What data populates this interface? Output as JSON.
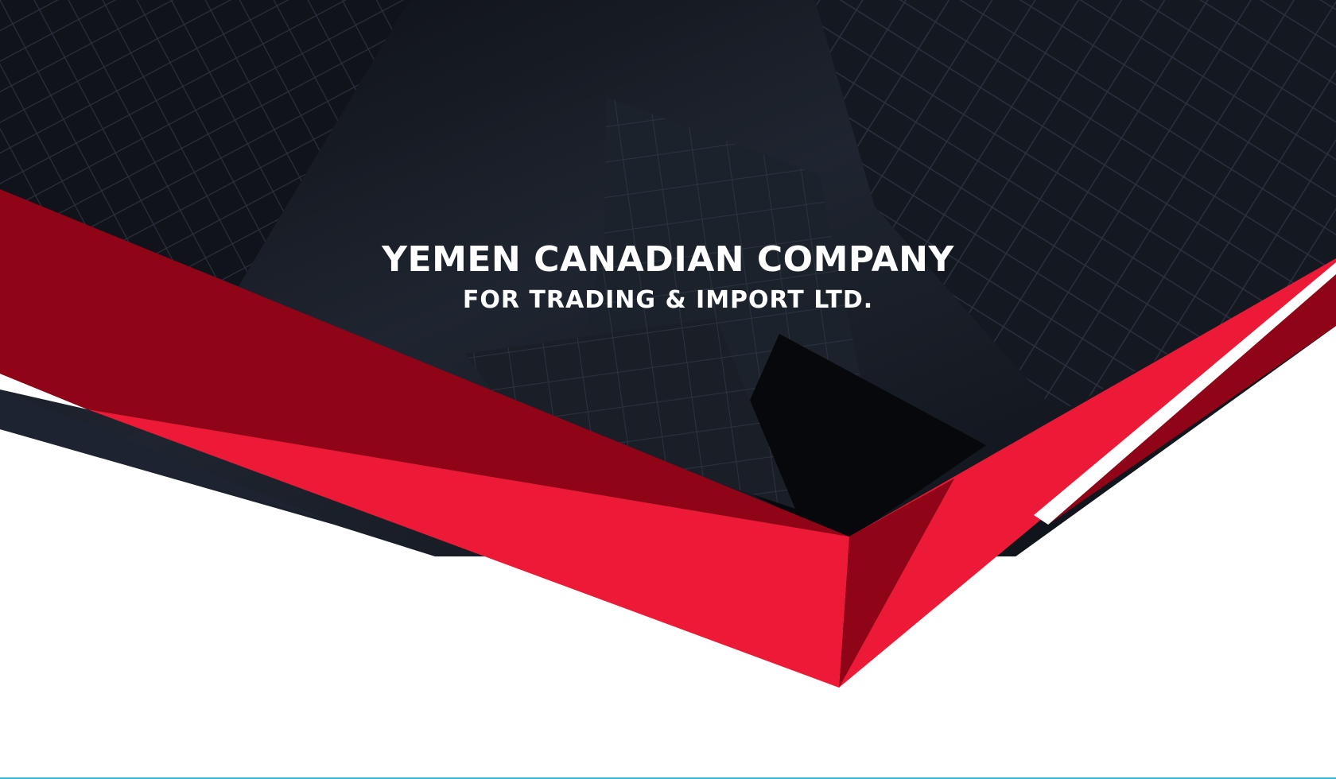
{
  "company": {
    "name": "YEMEN CANADIAN COMPANY",
    "tagline": "FOR TRADING & IMPORT LTD."
  },
  "colors": {
    "dark_background": "#161a22",
    "building_glass": "#222834",
    "deep_red": "#8f0417",
    "bright_red": "#ec1a37",
    "navy_stripe": "#1d2330",
    "white": "#ffffff",
    "bottom_line": "#3fb6d6"
  },
  "background_icon": "skyscraper-photo"
}
